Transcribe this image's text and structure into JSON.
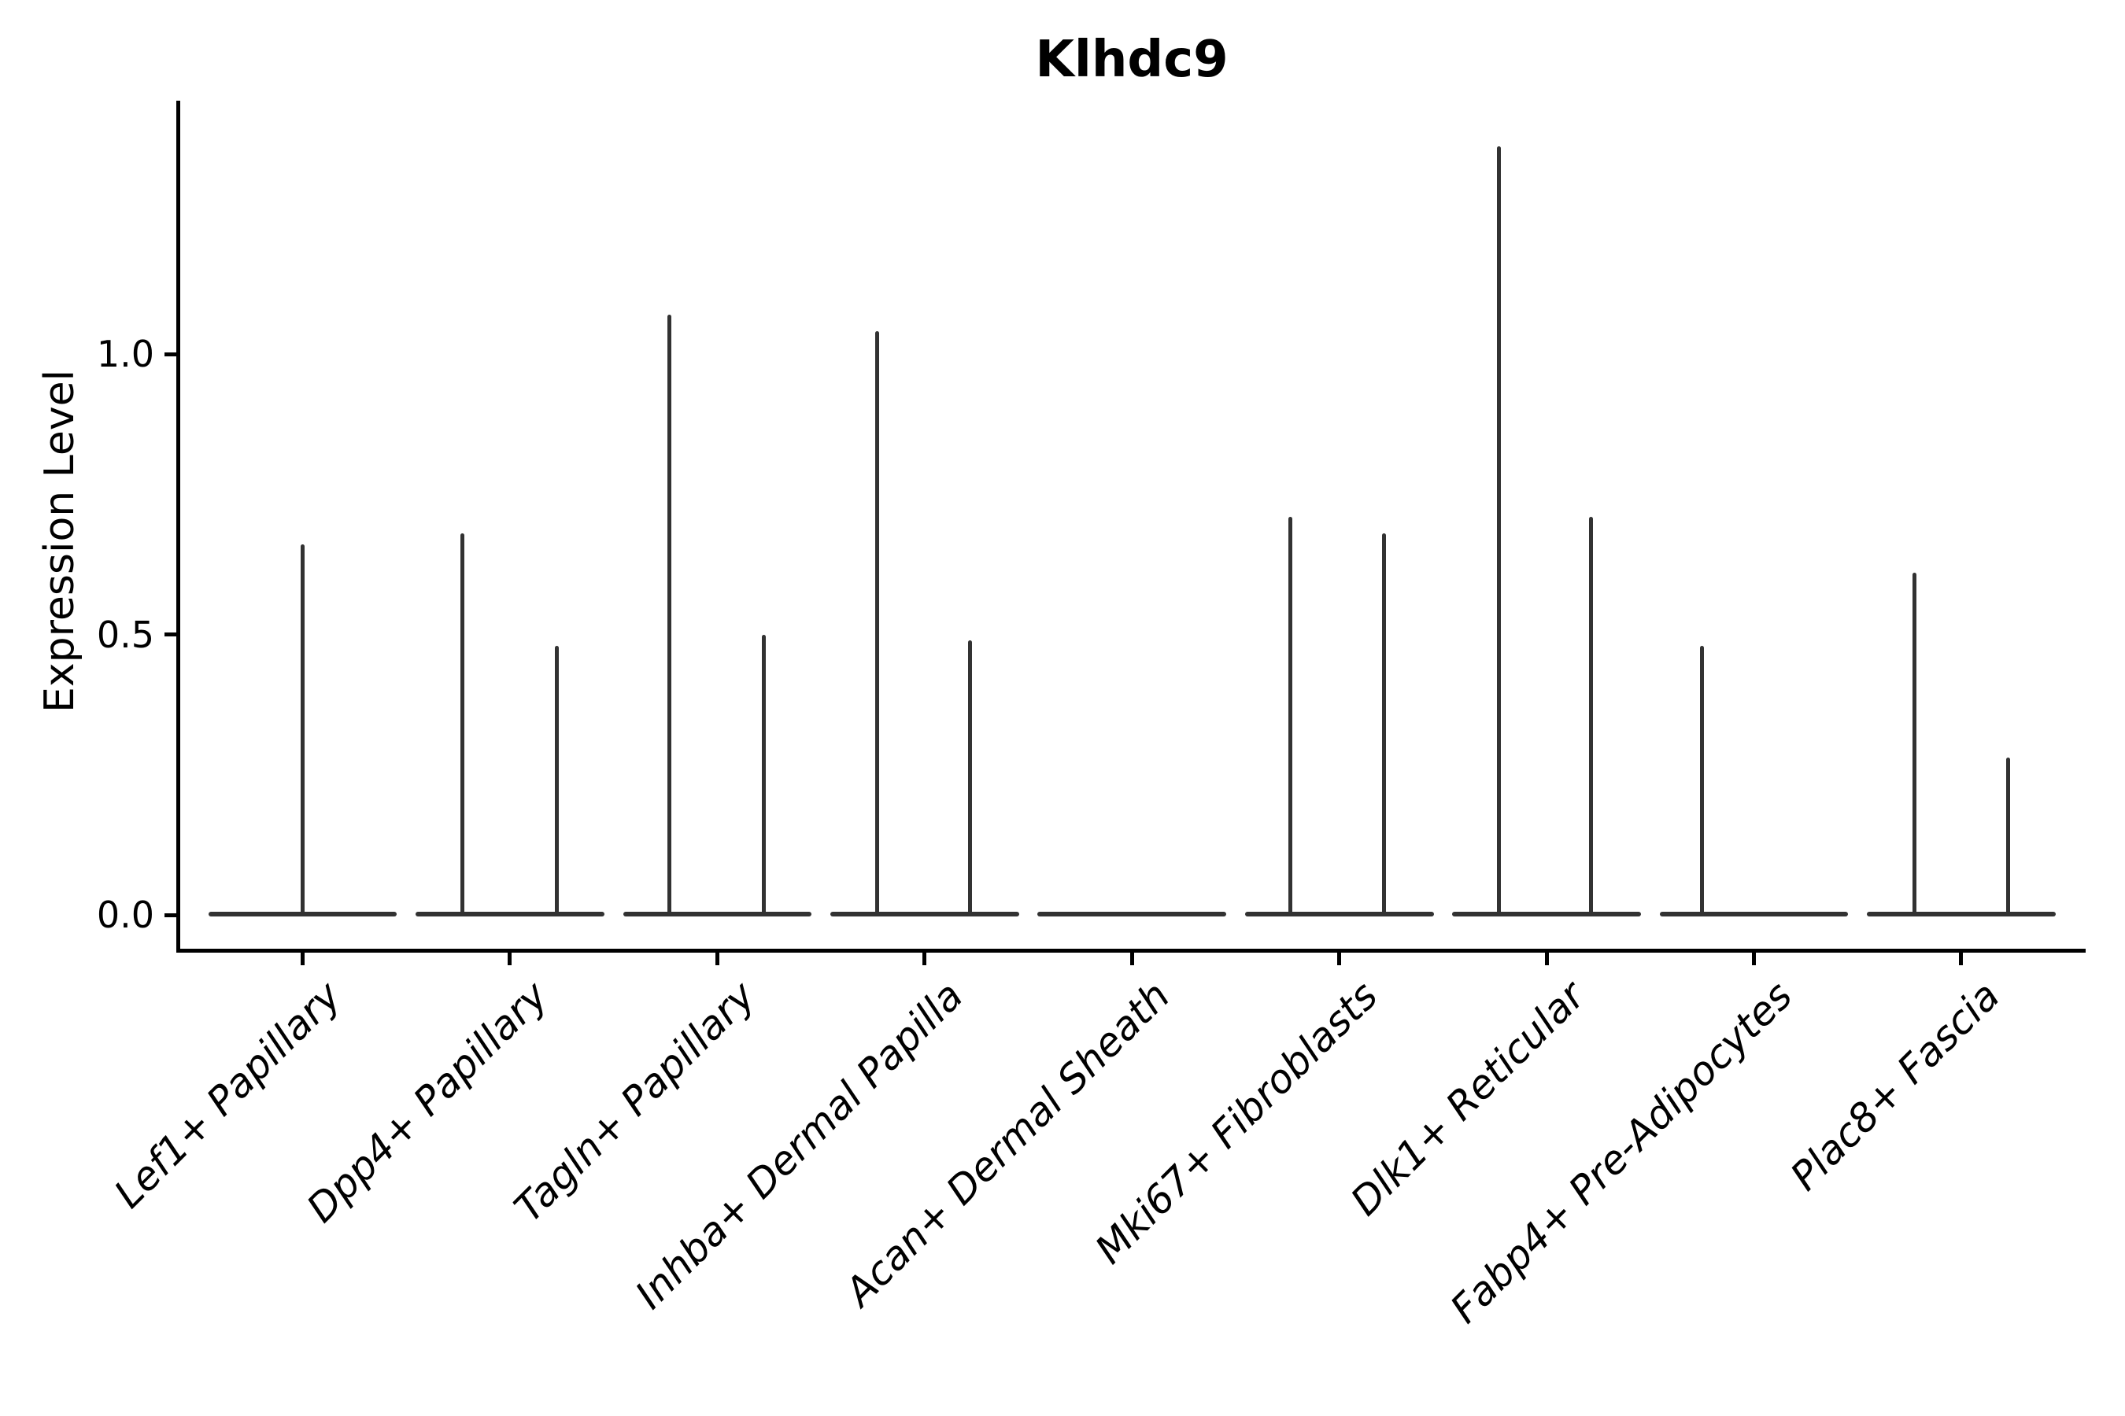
{
  "title": "Klhdc9",
  "axes": {
    "y": {
      "label": "Expression Level",
      "ticks": [
        {
          "label": "1.0",
          "value": 1.0
        },
        {
          "label": "0.5",
          "value": 0.5
        },
        {
          "label": "0.0",
          "value": 0.0
        }
      ]
    },
    "x": {
      "categories": [
        "Lef1+ Papillary",
        "Dpp4+ Papillary",
        "Tagln+ Papillary",
        "Inhba+ Dermal Papilla",
        "Acan+ Dermal Sheath",
        "Mki67+ Fibroblasts",
        "Dlk1+ Reticular",
        "Fabp4+ Pre-Adipocytes",
        "Plac8+ Fascia"
      ]
    }
  },
  "style": {
    "violin_color": "#323232",
    "axis_color": "#000000",
    "text_color": "#000000",
    "background": "#ffffff"
  },
  "chart_data": {
    "type": "violin",
    "title": "Klhdc9",
    "xlabel": "",
    "ylabel": "Expression Level",
    "ylim": [
      -0.06,
      1.45
    ],
    "yticks": [
      0.0,
      0.5,
      1.0
    ],
    "grid": false,
    "legend": "none",
    "categories": [
      "Lef1+ Papillary",
      "Dpp4+ Papillary",
      "Tagln+ Papillary",
      "Inhba+ Dermal Papilla",
      "Acan+ Dermal Sheath",
      "Mki67+ Fibroblasts",
      "Dlk1+ Reticular",
      "Fabp4+ Pre-Adipocytes",
      "Plac8+ Fascia"
    ],
    "violins": [
      {
        "category": "Lef1+ Papillary",
        "baseline_value": 0,
        "spikes": [
          {
            "pos": 0.0,
            "max_expression": 0.66
          }
        ]
      },
      {
        "category": "Dpp4+ Papillary",
        "baseline_value": 0,
        "spikes": [
          {
            "pos": -0.23,
            "max_expression": 0.68
          },
          {
            "pos": 0.225,
            "max_expression": 0.48
          }
        ]
      },
      {
        "category": "Tagln+ Papillary",
        "baseline_value": 0,
        "spikes": [
          {
            "pos": -0.23,
            "max_expression": 1.07
          },
          {
            "pos": 0.225,
            "max_expression": 0.5
          }
        ]
      },
      {
        "category": "Inhba+ Dermal Papilla",
        "baseline_value": 0,
        "spikes": [
          {
            "pos": -0.23,
            "max_expression": 1.04
          },
          {
            "pos": 0.22,
            "max_expression": 0.49
          }
        ]
      },
      {
        "category": "Acan+ Dermal Sheath",
        "baseline_value": 0,
        "spikes": []
      },
      {
        "category": "Mki67+ Fibroblasts",
        "baseline_value": 0,
        "spikes": [
          {
            "pos": -0.235,
            "max_expression": 0.71
          },
          {
            "pos": 0.215,
            "max_expression": 0.68
          }
        ]
      },
      {
        "category": "Dlk1+ Reticular",
        "baseline_value": 0,
        "spikes": [
          {
            "pos": -0.23,
            "max_expression": 1.37
          },
          {
            "pos": 0.215,
            "max_expression": 0.71
          }
        ]
      },
      {
        "category": "Fabp4+ Pre-Adipocytes",
        "baseline_value": 0,
        "spikes": [
          {
            "pos": -0.25,
            "max_expression": 0.48
          }
        ]
      },
      {
        "category": "Plac8+ Fascia",
        "baseline_value": 0,
        "spikes": [
          {
            "pos": -0.225,
            "max_expression": 0.61
          },
          {
            "pos": 0.225,
            "max_expression": 0.28
          }
        ]
      }
    ],
    "violin_half_width": 0.455
  }
}
